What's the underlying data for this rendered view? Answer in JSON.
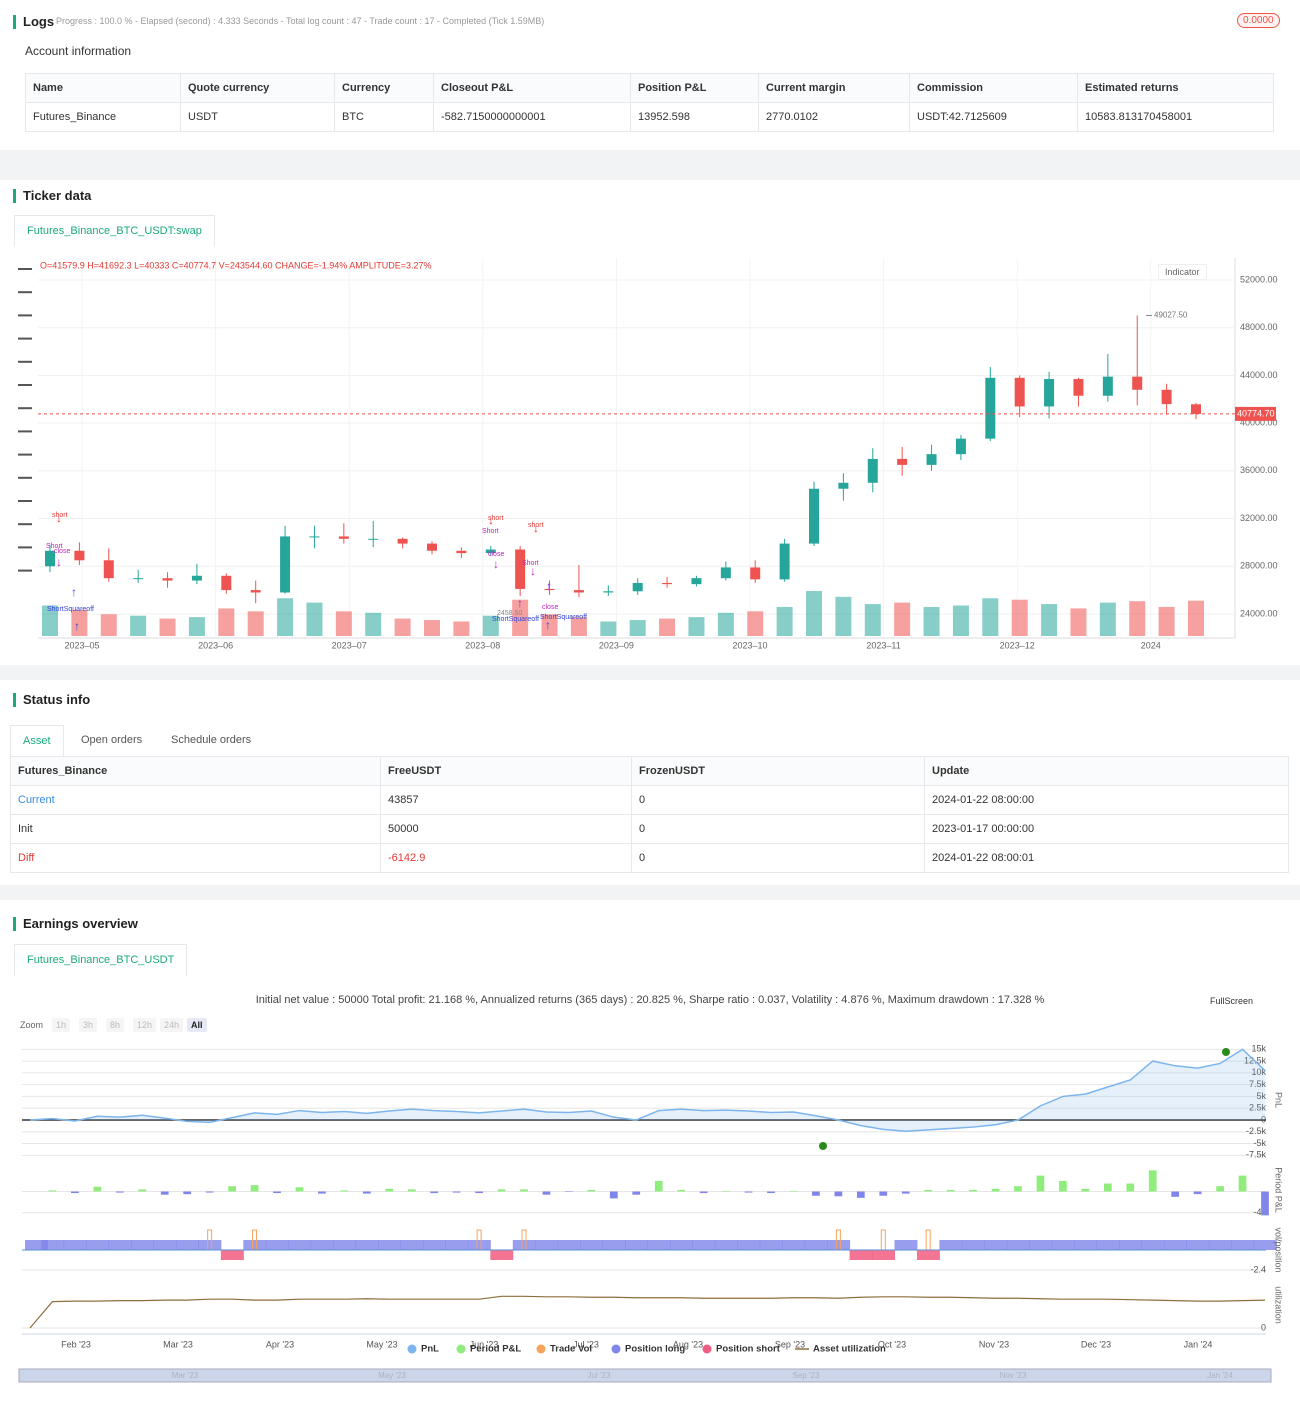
{
  "logs": {
    "title": "Logs",
    "progress": "Progress : 100.0 % - Elapsed (second) : 4.333 Seconds - Total log count : 47 - Trade count : 17 - Completed (Tick 1.59MB)",
    "badge": "0.0000"
  },
  "account": {
    "title": "Account information",
    "columns": [
      "Name",
      "Quote currency",
      "Currency",
      "Closeout P&L",
      "Position P&L",
      "Current margin",
      "Commission",
      "Estimated returns"
    ],
    "rows": [
      [
        "Futures_Binance",
        "USDT",
        "BTC",
        "-582.7150000000001",
        "13952.598",
        "2770.0102",
        "USDT:42.7125609",
        "10583.813170458001"
      ]
    ]
  },
  "ticker": {
    "title": "Ticker data",
    "tab": "Futures_Binance_BTC_USDT:swap",
    "ohlc": "O=41579.9 H=41692.3 L=40333 C=40774.7 V=243544.60 CHANGE=-1.94% AMPLITUDE=3.27%",
    "indicator": "Indicator",
    "up_color": "#26a69a",
    "down_color": "#ef5350",
    "ylim": [
      22150,
      53850
    ],
    "yticks": [
      {
        "value": 24000,
        "label": "24000.00"
      },
      {
        "value": 28000,
        "label": "28000.00"
      },
      {
        "value": 32000,
        "label": "32000.00"
      },
      {
        "value": 36000,
        "label": "36000.00"
      },
      {
        "value": 40000,
        "label": "40000.00"
      },
      {
        "value": 44000,
        "label": "44000.00"
      },
      {
        "value": 48000,
        "label": "48000.00"
      },
      {
        "value": 52000,
        "label": "52000.00"
      }
    ],
    "xticks": [
      "2023–05",
      "2023–06",
      "2023–07",
      "2023–08",
      "2023–09",
      "2023–10",
      "2023–11",
      "2023–12",
      "2024"
    ],
    "open": [
      28000,
      29300,
      28500,
      27000,
      27000,
      26800,
      27200,
      26000,
      25800,
      30500,
      30500,
      30300,
      30300,
      29900,
      29300,
      29100,
      29400,
      26100,
      26000,
      25800,
      25900,
      26600,
      26500,
      27000,
      27900,
      26900,
      29900,
      34500,
      35000,
      37000,
      36500,
      37400,
      38700,
      43800,
      41400,
      43700,
      42300,
      43900,
      42800,
      41579.9
    ],
    "high": [
      29800,
      30000,
      29500,
      27700,
      27500,
      28200,
      27400,
      26800,
      31400,
      31400,
      31600,
      31800,
      30400,
      30100,
      29600,
      29700,
      29700,
      26800,
      28100,
      26400,
      27000,
      27100,
      27200,
      28400,
      28500,
      30300,
      35100,
      35800,
      37900,
      38000,
      38200,
      39000,
      44700,
      44000,
      44300,
      43800,
      45800,
      49027.5,
      43300,
      41692.3
    ],
    "low": [
      27500,
      28100,
      26700,
      26600,
      26200,
      26500,
      25700,
      24900,
      25700,
      29500,
      29900,
      29600,
      29500,
      29000,
      28700,
      28900,
      25500,
      25600,
      25400,
      25500,
      25600,
      26200,
      26300,
      26800,
      26600,
      26700,
      29700,
      33500,
      34200,
      35600,
      36000,
      36900,
      38500,
      40500,
      40400,
      41400,
      41800,
      41500,
      40700,
      40333
    ],
    "close": [
      29300,
      28500,
      27000,
      27000,
      26800,
      27200,
      26000,
      25800,
      30500,
      30500,
      30300,
      30300,
      29900,
      29300,
      29100,
      29400,
      26100,
      26000,
      25800,
      25900,
      26600,
      26500,
      27000,
      27900,
      26900,
      29900,
      34500,
      35000,
      37000,
      36500,
      37400,
      38700,
      43800,
      41400,
      43700,
      42300,
      43900,
      42800,
      41600,
      40774.7
    ],
    "volume": [
      210,
      180,
      150,
      140,
      120,
      130,
      190,
      170,
      260,
      230,
      170,
      160,
      120,
      110,
      100,
      140,
      250,
      150,
      130,
      100,
      110,
      120,
      130,
      160,
      170,
      200,
      310,
      270,
      220,
      230,
      200,
      210,
      260,
      250,
      220,
      190,
      230,
      240,
      200,
      243.5446
    ],
    "last_price": {
      "value": 40774.7,
      "label": "40774.70"
    },
    "high_label": {
      "value": 49027.5,
      "label": "49027.50"
    },
    "annotations": [
      "short",
      "Short",
      "close",
      "ShortSquareoff",
      "short",
      "Short",
      "close",
      "2458.50",
      "ShortSquareoff",
      "short",
      "Short",
      "close",
      "ShortSquareoff"
    ]
  },
  "status": {
    "title": "Status info",
    "tabs": [
      "Asset",
      "Open orders",
      "Schedule orders"
    ],
    "columns": [
      "Futures_Binance",
      "FreeUSDT",
      "FrozenUSDT",
      "Update"
    ],
    "rows": [
      [
        "Current",
        "43857",
        "0",
        "2024-01-22 08:00:00"
      ],
      [
        "Init",
        "50000",
        "0",
        "2023-01-17 00:00:00"
      ],
      [
        "Diff",
        "-6142.9",
        "0",
        "2024-01-22 08:00:01"
      ]
    ]
  },
  "earnings": {
    "title": "Earnings overview",
    "tab": "Futures_Binance_BTC_USDT",
    "summary": "Initial net value : 50000 Total profit: 21.168 %, Annualized returns (365 days) : 20.825 %, Sharpe ratio : 0.037, Volatility : 4.876 %, Maximum drawdown : 17.328 %",
    "zoom_label": "Zoom",
    "zoom": [
      "1h",
      "3h",
      "8h",
      "12h",
      "24h",
      "All"
    ],
    "fullscreen": "FullScreen",
    "xticks": [
      "Feb '23",
      "Mar '23",
      "Apr '23",
      "May '23",
      "Jun '23",
      "Jul '23",
      "Aug '23",
      "Sep '23",
      "Oct '23",
      "Nov '23",
      "Dec '23",
      "Jan '24"
    ],
    "navigator": [
      "Mar '23",
      "May '23",
      "Jul '23",
      "Sep '23",
      "Nov '23",
      "Jan '24"
    ],
    "pnl": {
      "name": "PnL",
      "axis_title": "PnL",
      "color": "#7cb5ec",
      "ylim": [
        -8490,
        16340
      ],
      "yticks": [
        {
          "value": 15000,
          "label": "15k"
        },
        {
          "value": 12500,
          "label": "12.5k"
        },
        {
          "value": 10000,
          "label": "10k"
        },
        {
          "value": 7500,
          "label": "7.5k"
        },
        {
          "value": 5000,
          "label": "5k"
        },
        {
          "value": 2500,
          "label": "2.5k"
        },
        0,
        {
          "value": -2500,
          "label": "-2.5k"
        },
        {
          "value": -5000,
          "label": "-5k"
        },
        {
          "value": -7500,
          "label": "-7.5k"
        }
      ],
      "values": [
        0,
        300,
        -200,
        800,
        600,
        1000,
        400,
        -300,
        -500,
        500,
        1500,
        1200,
        2000,
        1600,
        1800,
        1400,
        1900,
        2300,
        2000,
        1800,
        1500,
        1900,
        2300,
        1700,
        1600,
        1900,
        600,
        0,
        2000,
        2300,
        2000,
        2100,
        1900,
        1600,
        1700,
        900,
        0,
        -1200,
        -2000,
        -2400,
        -2100,
        -1800,
        -1500,
        -1000,
        0,
        3000,
        5000,
        5500,
        7000,
        8500,
        12500,
        11500,
        11000,
        12000,
        15000,
        10500
      ]
    },
    "period": {
      "name": "Period P&L",
      "axis_title": "Period P&L",
      "color": "#90ed7d",
      "neg_color": "#8085e9",
      "ylim": [
        -5000,
        5000
      ],
      "yticks": [
        {
          "value": -4000,
          "label": "-4k"
        }
      ],
      "values": [
        0,
        200,
        -300,
        900,
        -200,
        400,
        -600,
        -500,
        -200,
        1000,
        1200,
        -300,
        800,
        -400,
        200,
        -400,
        500,
        400,
        -300,
        -200,
        -300,
        400,
        400,
        -600,
        -100,
        300,
        -1300,
        -600,
        2000,
        300,
        -300,
        100,
        -200,
        -300,
        100,
        -800,
        -900,
        -1200,
        -800,
        -400,
        300,
        300,
        300,
        500,
        1000,
        3000,
        2000,
        500,
        1500,
        1500,
        4000,
        -1000,
        -500,
        1000,
        3000,
        -4500
      ]
    },
    "trade_vol": {
      "name": "Trade Vol",
      "color": "#f7a35c",
      "values": [
        0,
        0,
        0,
        0,
        0,
        0,
        0,
        0,
        2.4,
        0,
        2.4,
        0,
        0,
        0,
        0,
        0,
        0,
        0,
        0,
        0,
        2.4,
        0,
        2.4,
        0,
        0,
        0,
        0,
        0,
        0,
        0,
        0,
        0,
        0,
        0,
        0,
        0,
        2.4,
        0,
        2.4,
        0,
        2.4,
        0,
        0,
        0,
        0,
        0,
        0,
        0,
        0,
        0,
        0,
        0,
        0,
        0,
        0,
        0
      ]
    },
    "position": {
      "long_name": "Position long",
      "long_color": "#8085e9",
      "short_name": "Position short",
      "short_color": "#f15c80",
      "axis_title": "vol/position",
      "ylim": [
        -3,
        3
      ],
      "yticks": [
        -2.4
      ],
      "values": [
        1.2,
        1.2,
        1.2,
        1.2,
        1.2,
        1.2,
        1.2,
        1.2,
        1.2,
        -1.2,
        1.2,
        1.2,
        1.2,
        1.2,
        1.2,
        1.2,
        1.2,
        1.2,
        1.2,
        1.2,
        1.2,
        -1.2,
        1.2,
        1.2,
        1.2,
        1.2,
        1.2,
        1.2,
        1.2,
        1.2,
        1.2,
        1.2,
        1.2,
        1.2,
        1.2,
        1.2,
        1.2,
        -1.2,
        -1.2,
        1.2,
        -1.2,
        1.2,
        1.2,
        1.2,
        1.2,
        1.2,
        1.2,
        1.2,
        1.2,
        1.2,
        1.2,
        1.2,
        1.2,
        1.2,
        1.2,
        1.2
      ]
    },
    "utilization": {
      "name": "Asset utilization",
      "axis_title": "utilization",
      "color": "#8d6e3b",
      "ylim": [
        0,
        1
      ],
      "yticks": [
        0
      ],
      "values": [
        0,
        0.55,
        0.56,
        0.56,
        0.57,
        0.57,
        0.58,
        0.58,
        0.6,
        0.6,
        0.58,
        0.58,
        0.6,
        0.6,
        0.6,
        0.61,
        0.6,
        0.6,
        0.6,
        0.6,
        0.6,
        0.66,
        0.66,
        0.65,
        0.65,
        0.64,
        0.64,
        0.63,
        0.63,
        0.63,
        0.62,
        0.62,
        0.62,
        0.62,
        0.63,
        0.63,
        0.62,
        0.64,
        0.65,
        0.65,
        0.64,
        0.64,
        0.63,
        0.62,
        0.62,
        0.61,
        0.6,
        0.6,
        0.6,
        0.59,
        0.58,
        0.57,
        0.56,
        0.56,
        0.57,
        0.58
      ]
    }
  }
}
